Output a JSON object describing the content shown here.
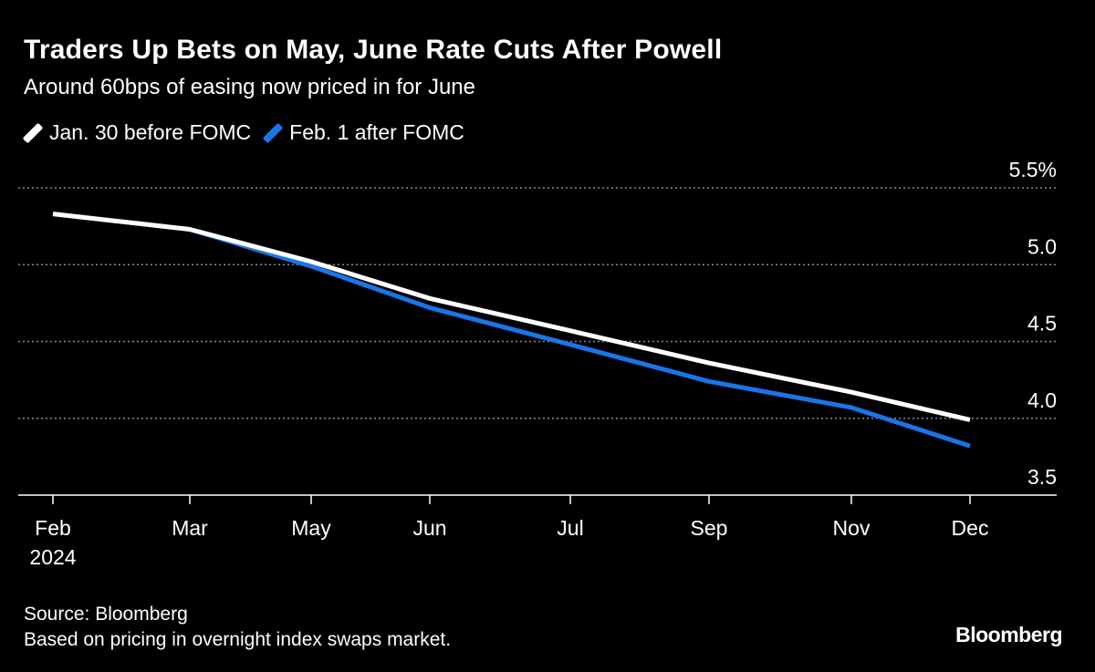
{
  "chart_data": {
    "type": "line",
    "title": "Traders Up Bets on May, June Rate Cuts After Powell",
    "subtitle": "Around 60bps of easing now priced in for June",
    "categories": [
      "Feb",
      "Mar",
      "May",
      "Jun",
      "Jul",
      "Sep",
      "Nov",
      "Dec"
    ],
    "x_sublabel": "2024",
    "series": [
      {
        "name": "Jan. 30 before FOMC",
        "color": "#ffffff",
        "values": [
          5.33,
          5.23,
          5.02,
          4.78,
          4.57,
          4.36,
          4.17,
          3.99
        ]
      },
      {
        "name": "Feb. 1 after FOMC",
        "color": "#1a75e8",
        "values": [
          5.33,
          5.23,
          4.99,
          4.72,
          4.48,
          4.24,
          4.07,
          3.82
        ]
      }
    ],
    "yticks": [
      "5.5%",
      "5.0",
      "4.5",
      "4.0",
      "3.5"
    ],
    "ytick_values": [
      5.5,
      5.0,
      4.5,
      4.0,
      3.5
    ],
    "ylim": [
      3.5,
      5.5
    ],
    "y_axis_position": "right",
    "grid": "horizontal dotted",
    "legend_placement": "top-left"
  },
  "footer": {
    "source": "Source: Bloomberg",
    "note": "Based on pricing in overnight index swaps market.",
    "logo": "Bloomberg"
  }
}
